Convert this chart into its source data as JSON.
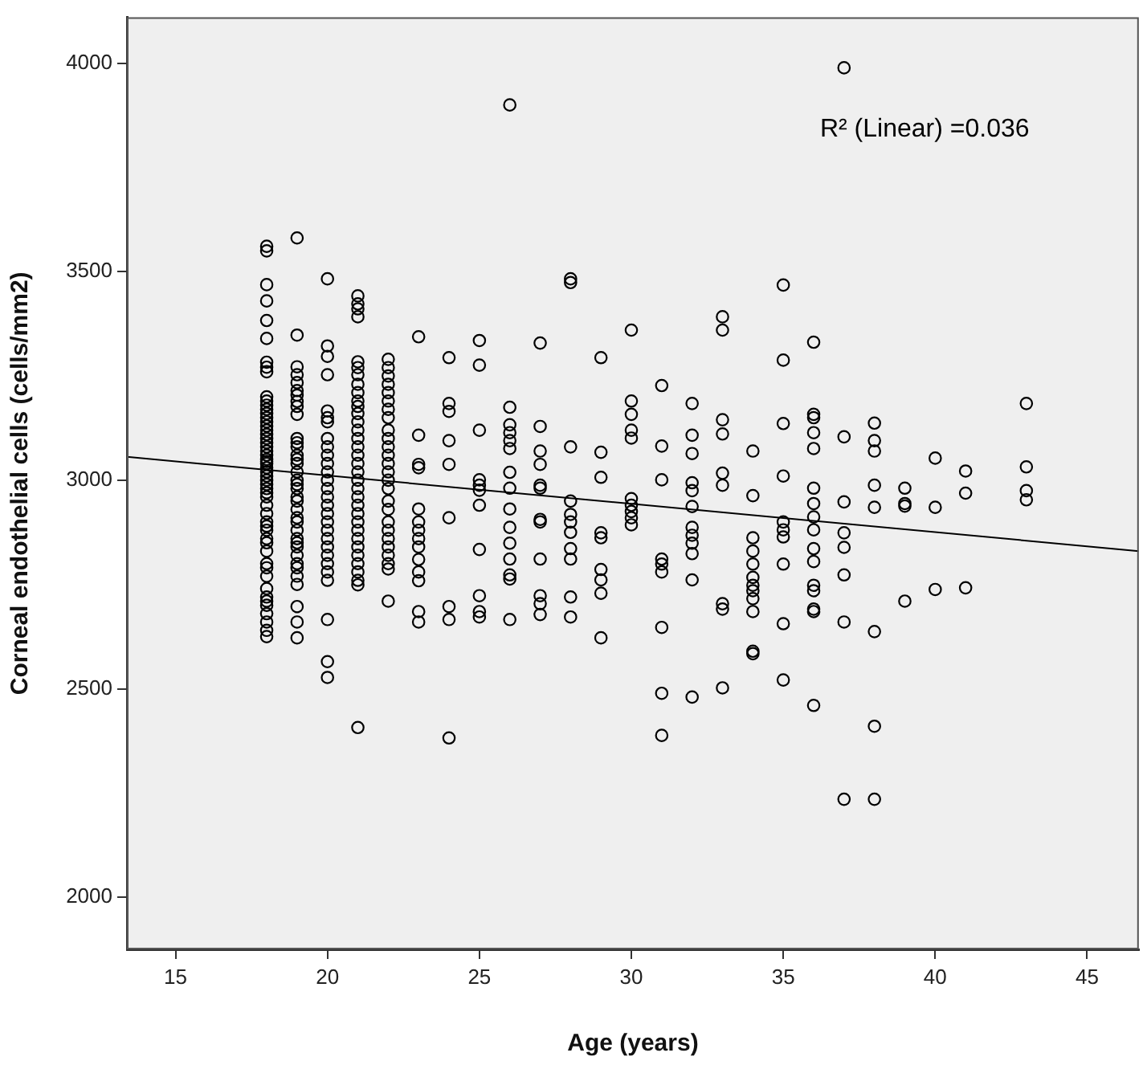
{
  "chart_data": {
    "type": "scatter",
    "xlabel": "Age (years)",
    "ylabel": "Corneal endothelial cells (cells/mm2)",
    "annotations": [
      "R² (Linear) =0.036"
    ],
    "xlim": [
      13.4,
      46.7
    ],
    "xticks": [
      15,
      20,
      25,
      30,
      35,
      40,
      45
    ],
    "ylim": [
      1875,
      4110
    ],
    "yticks": [
      2000,
      2500,
      3000,
      3500,
      4000
    ],
    "grid": false,
    "legend": false,
    "marker": "circle",
    "series": [
      {
        "color": "#000000",
        "x": [
          18,
          18,
          18,
          18,
          18,
          18,
          18,
          18,
          18,
          18,
          18,
          18,
          18,
          18,
          18,
          18,
          18,
          18,
          18,
          18,
          18,
          18,
          18,
          18,
          18,
          18,
          18,
          18,
          18,
          18,
          18,
          18,
          18,
          18,
          18,
          18,
          18,
          18,
          18,
          18,
          18,
          18,
          18,
          18,
          18,
          18,
          18,
          18,
          18,
          18,
          18,
          18,
          18,
          18,
          19,
          19,
          19,
          19,
          19,
          19,
          19,
          19,
          19,
          19,
          19,
          19,
          19,
          19,
          19,
          19,
          19,
          19,
          19,
          19,
          19,
          19,
          19,
          19,
          19,
          19,
          19,
          19,
          19,
          19,
          19,
          19,
          19,
          19,
          19,
          19,
          19,
          20,
          20,
          20,
          20,
          20,
          20,
          20,
          20,
          20,
          20,
          20,
          20,
          20,
          20,
          20,
          20,
          20,
          20,
          20,
          20,
          20,
          20,
          20,
          20,
          20,
          20,
          20,
          20,
          21,
          21,
          21,
          21,
          21,
          21,
          21,
          21,
          21,
          21,
          21,
          21,
          21,
          21,
          21,
          21,
          21,
          21,
          21,
          21,
          21,
          21,
          21,
          21,
          21,
          21,
          21,
          21,
          21,
          21,
          21,
          21,
          21,
          21,
          22,
          22,
          22,
          22,
          22,
          22,
          22,
          22,
          22,
          22,
          22,
          22,
          22,
          22,
          22,
          22,
          22,
          22,
          22,
          22,
          22,
          22,
          22,
          22,
          22,
          22,
          23,
          23,
          23,
          23,
          23,
          23,
          23,
          23,
          23,
          23,
          23,
          23,
          23,
          23,
          24,
          24,
          24,
          24,
          24,
          24,
          24,
          24,
          24,
          25,
          25,
          25,
          25,
          25,
          25,
          25,
          25,
          25,
          25,
          25,
          26,
          26,
          26,
          26,
          26,
          26,
          26,
          26,
          26,
          26,
          26,
          26,
          26,
          26,
          26,
          27,
          27,
          27,
          27,
          27,
          27,
          27,
          27,
          27,
          27,
          27,
          27,
          28,
          28,
          28,
          28,
          28,
          28,
          28,
          28,
          28,
          28,
          28,
          29,
          29,
          29,
          29,
          29,
          29,
          29,
          29,
          29,
          30,
          30,
          30,
          30,
          30,
          30,
          30,
          30,
          30,
          30,
          31,
          31,
          31,
          31,
          31,
          31,
          31,
          31,
          31,
          32,
          32,
          32,
          32,
          32,
          32,
          32,
          32,
          32,
          32,
          32,
          32,
          33,
          33,
          33,
          33,
          33,
          33,
          33,
          33,
          33,
          34,
          34,
          34,
          34,
          34,
          34,
          34,
          34,
          34,
          34,
          34,
          34,
          35,
          35,
          35,
          35,
          35,
          35,
          35,
          35,
          35,
          35,
          36,
          36,
          36,
          36,
          36,
          36,
          36,
          36,
          36,
          36,
          36,
          36,
          36,
          36,
          36,
          36,
          37,
          37,
          37,
          37,
          37,
          37,
          37,
          37,
          38,
          38,
          38,
          38,
          38,
          38,
          38,
          38,
          39,
          39,
          39,
          39,
          40,
          40,
          40,
          41,
          41,
          41,
          43,
          43,
          43,
          43
        ],
        "values": [
          3561,
          3550,
          3469,
          3430,
          3383,
          3340,
          3283,
          3271,
          3260,
          3200,
          3190,
          3180,
          3170,
          3160,
          3150,
          3140,
          3130,
          3120,
          3110,
          3100,
          3090,
          3080,
          3070,
          3060,
          3050,
          3045,
          3040,
          3030,
          3020,
          3010,
          3000,
          2990,
          2980,
          2970,
          2960,
          2940,
          2920,
          2900,
          2890,
          2880,
          2860,
          2850,
          2830,
          2800,
          2790,
          2770,
          2740,
          2720,
          2710,
          2700,
          2680,
          2660,
          2640,
          2625,
          3581,
          3348,
          3272,
          3253,
          3234,
          3215,
          3204,
          3189,
          3177,
          3158,
          3100,
          3090,
          3080,
          3060,
          3050,
          3040,
          3020,
          3000,
          2990,
          2980,
          2960,
          2950,
          2930,
          2910,
          2900,
          2880,
          2860,
          2850,
          2840,
          2820,
          2800,
          2790,
          2770,
          2750,
          2697,
          2660,
          2622,
          3483,
          3322,
          3297,
          3253,
          3166,
          3150,
          3140,
          3100,
          3080,
          3060,
          3040,
          3020,
          3000,
          2980,
          2960,
          2940,
          2920,
          2900,
          2880,
          2860,
          2840,
          2820,
          2800,
          2780,
          2760,
          2666,
          2565,
          2527,
          3442,
          3423,
          3411,
          3392,
          3284,
          3270,
          3253,
          3230,
          3210,
          3190,
          3177,
          3160,
          3140,
          3120,
          3100,
          3080,
          3060,
          3040,
          3020,
          3000,
          2980,
          2960,
          2940,
          2920,
          2900,
          2880,
          2860,
          2840,
          2820,
          2800,
          2780,
          2760,
          2749,
          2407,
          3290,
          3270,
          3250,
          3230,
          3210,
          3190,
          3170,
          3150,
          3120,
          3100,
          3080,
          3060,
          3040,
          3020,
          3000,
          2980,
          2950,
          2930,
          2900,
          2880,
          2860,
          2840,
          2820,
          2800,
          2787,
          2710,
          3344,
          3108,
          3038,
          3030,
          2931,
          2900,
          2880,
          2860,
          2840,
          2810,
          2780,
          2759,
          2685,
          2660,
          3294,
          3184,
          3165,
          3095,
          3038,
          2910,
          2697,
          2666,
          2382,
          3335,
          3276,
          3120,
          3001,
          2988,
          2976,
          2940,
          2834,
          2723,
          2685,
          2672,
          3900,
          3175,
          3133,
          3114,
          3095,
          3076,
          3019,
          2981,
          2931,
          2887,
          2849,
          2811,
          2773,
          2763,
          2666,
          3329,
          3129,
          3070,
          3038,
          2988,
          2981,
          2906,
          2900,
          2811,
          2723,
          2704,
          2678,
          3483,
          3474,
          3080,
          2950,
          2918,
          2900,
          2875,
          2836,
          2811,
          2720,
          2672,
          3294,
          3067,
          3007,
          2874,
          2862,
          2786,
          2761,
          2729,
          2622,
          3360,
          3190,
          3158,
          3120,
          3101,
          2956,
          2940,
          2925,
          2910,
          2893,
          3227,
          3082,
          3001,
          2811,
          2799,
          2780,
          2647,
          2489,
          2388,
          3184,
          3108,
          3064,
          2994,
          2975,
          2937,
          2887,
          2868,
          2849,
          2824,
          2761,
          2480,
          3392,
          3360,
          3145,
          3111,
          3017,
          2988,
          2704,
          2691,
          2502,
          3070,
          2963,
          2862,
          2830,
          2799,
          2767,
          2748,
          2735,
          2716,
          2685,
          2590,
          2584,
          3468,
          3288,
          3136,
          3010,
          2900,
          2881,
          2864,
          2799,
          2656,
          2521,
          3331,
          3158,
          3150,
          3114,
          3076,
          2981,
          2944,
          2912,
          2881,
          2836,
          2805,
          2748,
          2735,
          2691,
          2685,
          2460,
          3989,
          3104,
          2948,
          2874,
          2839,
          2773,
          2660,
          2235,
          3137,
          3095,
          3070,
          2988,
          2935,
          2637,
          2410,
          2235,
          2981,
          2944,
          2938,
          2710,
          3053,
          2935,
          2738,
          3022,
          2969,
          2742,
          3184,
          3032,
          2975,
          2953
        ]
      },
      {
        "type": "line",
        "color": "#000000",
        "marker": "none",
        "x": [
          13.4,
          46.7
        ],
        "values": [
          3056,
          2830
        ]
      }
    ]
  }
}
